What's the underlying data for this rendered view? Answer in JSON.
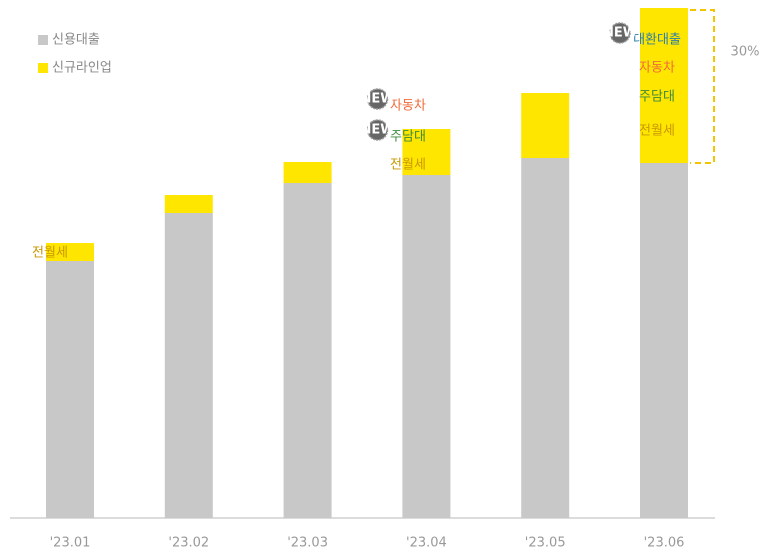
{
  "chart_data": {
    "type": "bar",
    "stacked": true,
    "categories": [
      "'23.01",
      "'23.02",
      "'23.03",
      "'23.04",
      "'23.05",
      "'23.06"
    ],
    "series": [
      {
        "name": "신용대출",
        "color": "#c8c8c8",
        "values": [
          257,
          305,
          335,
          343,
          360,
          355
        ]
      },
      {
        "name": "신규라인업",
        "color": "#ffe600",
        "values": [
          18,
          18,
          21,
          46,
          65,
          155
        ]
      }
    ],
    "ylim": [
      0,
      510
    ],
    "annotations": [
      [
        {
          "text": "전월세",
          "color": "#c99700"
        }
      ],
      [],
      [],
      [
        {
          "text": "자동차",
          "color": "#f06a3a",
          "badge": "NEW"
        },
        {
          "text": "주담대",
          "color": "#3d8a3a",
          "badge": "NEW"
        },
        {
          "text": "전월세",
          "color": "#c99700"
        }
      ],
      [],
      [
        {
          "text": "대환대출",
          "color": "#2a7fa8",
          "badge": "NEW"
        },
        {
          "text": "자동차",
          "color": "#f06a3a"
        },
        {
          "text": "주담대",
          "color": "#3d8a3a"
        },
        {
          "text": "전월세",
          "color": "#c99700"
        }
      ]
    ],
    "bracket_label": "30%"
  }
}
